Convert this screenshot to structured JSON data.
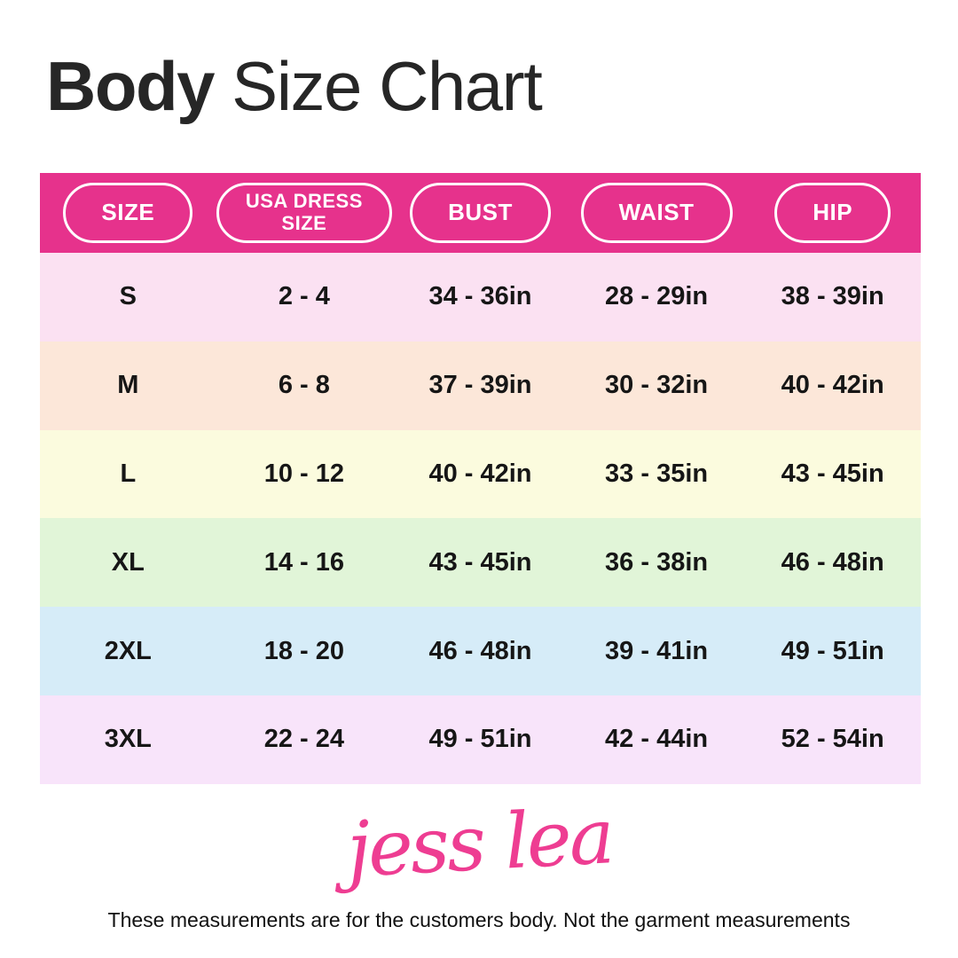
{
  "title": {
    "emphasis": "Body",
    "rest": " Size Chart"
  },
  "table": {
    "header_bg": "#e6328c",
    "columns": [
      {
        "label": "SIZE"
      },
      {
        "label": "USA DRESS\nSIZE"
      },
      {
        "label": "BUST"
      },
      {
        "label": "WAIST"
      },
      {
        "label": "HIP"
      }
    ],
    "rows": [
      {
        "size": "S",
        "dress_size": "2 - 4",
        "bust": "34 - 36in",
        "waist": "28 - 29in",
        "hip": "38 - 39in",
        "bg": "#fbe1f2"
      },
      {
        "size": "M",
        "dress_size": "6 - 8",
        "bust": "37 - 39in",
        "waist": "30 - 32in",
        "hip": "40 - 42in",
        "bg": "#fce7d9"
      },
      {
        "size": "L",
        "dress_size": "10 - 12",
        "bust": "40 - 42in",
        "waist": "33 - 35in",
        "hip": "43 - 45in",
        "bg": "#fbfbde"
      },
      {
        "size": "XL",
        "dress_size": "14 - 16",
        "bust": "43 - 45in",
        "waist": "36 - 38in",
        "hip": "46 - 48in",
        "bg": "#e1f5d8"
      },
      {
        "size": "2XL",
        "dress_size": "18 - 20",
        "bust": "46 - 48in",
        "waist": "39 - 41in",
        "hip": "49 - 51in",
        "bg": "#d6ecf8"
      },
      {
        "size": "3XL",
        "dress_size": "22 - 24",
        "bust": "49 - 51in",
        "waist": "42 - 44in",
        "hip": "52 - 54in",
        "bg": "#f8e4fa"
      }
    ]
  },
  "brand": {
    "logo_text": "jess lea",
    "logo_color": "#ee3d92"
  },
  "footer": {
    "note": "These measurements are for the customers body. Not the garment measurements"
  }
}
